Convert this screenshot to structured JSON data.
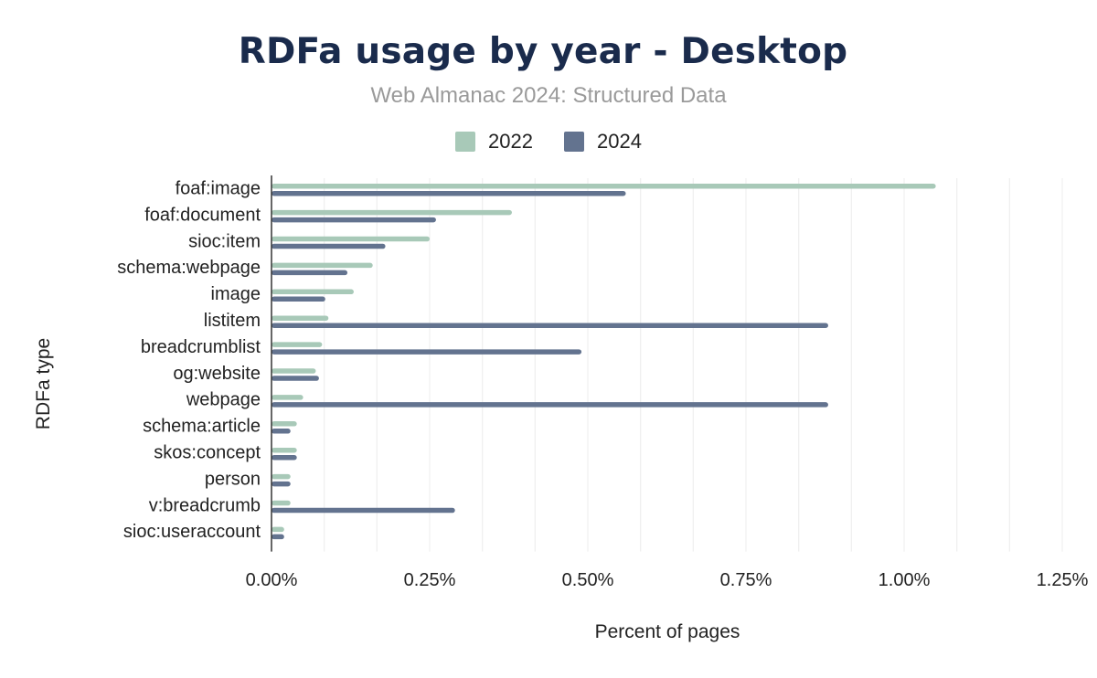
{
  "title": "RDFa usage by year - Desktop",
  "subtitle": "Web Almanac 2024: Structured Data",
  "chart_data": {
    "type": "bar",
    "orientation": "horizontal",
    "title": "RDFa usage by year - Desktop",
    "subtitle": "Web Almanac 2024: Structured Data",
    "xlabel": "Percent of pages",
    "ylabel": "RDFa type",
    "xlim": [
      0,
      1.25
    ],
    "x_ticks": [
      "0.00%",
      "0.25%",
      "0.50%",
      "0.75%",
      "1.00%",
      "1.25%"
    ],
    "x_tick_values": [
      0,
      0.25,
      0.5,
      0.75,
      1.0,
      1.25
    ],
    "grid": true,
    "legend_position": "top",
    "categories": [
      "foaf:image",
      "foaf:document",
      "sioc:item",
      "schema:webpage",
      "image",
      "listitem",
      "breadcrumblist",
      "og:website",
      "webpage",
      "schema:article",
      "skos:concept",
      "person",
      "v:breadcrumb",
      "sioc:useraccount"
    ],
    "series": [
      {
        "name": "2022",
        "color": "#a8c9b8",
        "values": [
          1.05,
          0.38,
          0.25,
          0.16,
          0.13,
          0.09,
          0.08,
          0.07,
          0.05,
          0.04,
          0.04,
          0.03,
          0.03,
          0.02
        ]
      },
      {
        "name": "2024",
        "color": "#63738f",
        "values": [
          0.56,
          0.26,
          0.18,
          0.12,
          0.085,
          0.88,
          0.49,
          0.075,
          0.88,
          0.03,
          0.04,
          0.03,
          0.29,
          0.02
        ]
      }
    ]
  }
}
